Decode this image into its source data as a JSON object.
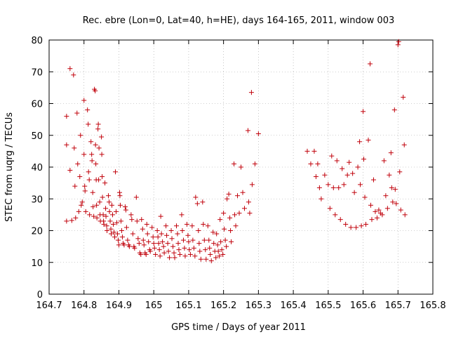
{
  "chart_data": {
    "type": "scatter",
    "title": "Rec. ebre (Lon=0, Lat=40, h=HE), days 164-165, 2011, window 003",
    "xlabel": "GPS time / Days of year 2011",
    "ylabel": "STEC from uqrg / TECUs",
    "xlim": [
      164.7,
      165.8
    ],
    "ylim": [
      0,
      80
    ],
    "xticks": [
      164.7,
      164.8,
      164.9,
      165.0,
      165.1,
      165.2,
      165.3,
      165.4,
      165.5,
      165.6,
      165.7,
      165.8
    ],
    "xtick_labels": [
      "164.7",
      "164.8",
      "164.9",
      "165",
      "165.1",
      "165.2",
      "165.3",
      "165.4",
      "165.5",
      "165.6",
      "165.7",
      "165.8"
    ],
    "yticks": [
      0,
      10,
      20,
      30,
      40,
      50,
      60,
      70,
      80
    ],
    "ytick_labels": [
      "0",
      "10",
      "20",
      "30",
      "40",
      "50",
      "60",
      "70",
      "80"
    ],
    "grid": true,
    "marker": "+",
    "color": "#c0000a",
    "points": [
      [
        164.75,
        56.0
      ],
      [
        164.75,
        47.0
      ],
      [
        164.75,
        23.0
      ],
      [
        164.76,
        71.0
      ],
      [
        164.76,
        39.0
      ],
      [
        164.765,
        23.2
      ],
      [
        164.77,
        69.0
      ],
      [
        164.772,
        46.0
      ],
      [
        164.774,
        34.0
      ],
      [
        164.776,
        24.0
      ],
      [
        164.78,
        57.0
      ],
      [
        164.782,
        41.0
      ],
      [
        164.785,
        26.0
      ],
      [
        164.788,
        37.0
      ],
      [
        164.79,
        50.0
      ],
      [
        164.792,
        28.0
      ],
      [
        164.795,
        29.0
      ],
      [
        164.8,
        61.0
      ],
      [
        164.8,
        44.0
      ],
      [
        164.802,
        34.0
      ],
      [
        164.803,
        32.5
      ],
      [
        164.805,
        26.0
      ],
      [
        164.81,
        58.0
      ],
      [
        164.812,
        53.5
      ],
      [
        164.813,
        38.5
      ],
      [
        164.815,
        36.0
      ],
      [
        164.816,
        25.0
      ],
      [
        164.82,
        48.0
      ],
      [
        164.822,
        44.0
      ],
      [
        164.823,
        42.0
      ],
      [
        164.825,
        32.0
      ],
      [
        164.826,
        27.5
      ],
      [
        164.828,
        24.5
      ],
      [
        164.83,
        64.5
      ],
      [
        164.832,
        64.0
      ],
      [
        164.833,
        47.0
      ],
      [
        164.834,
        41.0
      ],
      [
        164.835,
        36.0
      ],
      [
        164.836,
        28.0
      ],
      [
        164.837,
        24.0
      ],
      [
        164.84,
        52.0
      ],
      [
        164.841,
        53.5
      ],
      [
        164.842,
        36.0
      ],
      [
        164.843,
        46.0
      ],
      [
        164.845,
        29.0
      ],
      [
        164.846,
        25.0
      ],
      [
        164.847,
        23.0
      ],
      [
        164.85,
        49.5
      ],
      [
        164.851,
        44.0
      ],
      [
        164.852,
        37.0
      ],
      [
        164.853,
        30.5
      ],
      [
        164.855,
        25.0
      ],
      [
        164.856,
        23.0
      ],
      [
        164.857,
        22.0
      ],
      [
        164.86,
        35.0
      ],
      [
        164.862,
        27.0
      ],
      [
        164.863,
        24.5
      ],
      [
        164.865,
        21.5
      ],
      [
        164.866,
        20.0
      ],
      [
        164.87,
        31.0
      ],
      [
        164.872,
        29.0
      ],
      [
        164.873,
        26.0
      ],
      [
        164.875,
        23.0
      ],
      [
        164.877,
        20.5
      ],
      [
        164.878,
        19.0
      ],
      [
        164.88,
        28.0
      ],
      [
        164.882,
        25.0
      ],
      [
        164.884,
        22.0
      ],
      [
        164.886,
        19.5
      ],
      [
        164.888,
        18.0
      ],
      [
        164.89,
        38.5
      ],
      [
        164.892,
        26.0
      ],
      [
        164.894,
        22.5
      ],
      [
        164.896,
        19.0
      ],
      [
        164.898,
        17.0
      ],
      [
        164.9,
        15.5
      ],
      [
        164.902,
        32.0
      ],
      [
        164.903,
        31.0
      ],
      [
        164.904,
        28.0
      ],
      [
        164.906,
        23.0
      ],
      [
        164.908,
        20.0
      ],
      [
        164.91,
        18.0
      ],
      [
        164.912,
        16.0
      ],
      [
        164.915,
        15.5
      ],
      [
        164.918,
        27.5
      ],
      [
        164.92,
        26.5
      ],
      [
        164.922,
        21.0
      ],
      [
        164.925,
        17.0
      ],
      [
        164.928,
        15.5
      ],
      [
        164.93,
        15.0
      ],
      [
        164.935,
        25.0
      ],
      [
        164.937,
        23.5
      ],
      [
        164.94,
        19.0
      ],
      [
        164.943,
        15.0
      ],
      [
        164.945,
        14.5
      ],
      [
        164.95,
        30.5
      ],
      [
        164.952,
        23.0
      ],
      [
        164.955,
        17.5
      ],
      [
        164.958,
        16.0
      ],
      [
        164.96,
        13.0
      ],
      [
        164.963,
        12.5
      ],
      [
        164.965,
        23.5
      ],
      [
        164.968,
        20.5
      ],
      [
        164.97,
        17.0
      ],
      [
        164.972,
        15.5
      ],
      [
        164.975,
        13.0
      ],
      [
        164.978,
        12.5
      ],
      [
        164.98,
        22.0
      ],
      [
        164.982,
        19.0
      ],
      [
        164.985,
        16.5
      ],
      [
        164.988,
        14.0
      ],
      [
        164.99,
        13.5
      ],
      [
        164.995,
        21.0
      ],
      [
        164.998,
        18.0
      ],
      [
        165.0,
        16.0
      ],
      [
        165.002,
        14.5
      ],
      [
        165.005,
        12.5
      ],
      [
        165.01,
        20.0
      ],
      [
        165.012,
        18.0
      ],
      [
        165.014,
        16.0
      ],
      [
        165.016,
        14.0
      ],
      [
        165.018,
        12.0
      ],
      [
        165.02,
        24.5
      ],
      [
        165.022,
        19.0
      ],
      [
        165.025,
        16.5
      ],
      [
        165.028,
        15.0
      ],
      [
        165.03,
        13.0
      ],
      [
        165.035,
        21.5
      ],
      [
        165.037,
        18.5
      ],
      [
        165.04,
        16.0
      ],
      [
        165.042,
        13.5
      ],
      [
        165.045,
        11.5
      ],
      [
        165.05,
        20.0
      ],
      [
        165.052,
        17.5
      ],
      [
        165.055,
        15.0
      ],
      [
        165.058,
        13.0
      ],
      [
        165.06,
        11.5
      ],
      [
        165.065,
        21.5
      ],
      [
        165.068,
        19.0
      ],
      [
        165.07,
        16.0
      ],
      [
        165.072,
        14.0
      ],
      [
        165.075,
        12.5
      ],
      [
        165.08,
        25.0
      ],
      [
        165.082,
        20.0
      ],
      [
        165.085,
        17.0
      ],
      [
        165.088,
        14.5
      ],
      [
        165.09,
        12.0
      ],
      [
        165.095,
        22.0
      ],
      [
        165.098,
        18.5
      ],
      [
        165.1,
        16.5
      ],
      [
        165.102,
        14.0
      ],
      [
        165.105,
        12.5
      ],
      [
        165.11,
        21.5
      ],
      [
        165.112,
        17.0
      ],
      [
        165.115,
        14.5
      ],
      [
        165.118,
        12.0
      ],
      [
        165.12,
        30.5
      ],
      [
        165.125,
        28.5
      ],
      [
        165.128,
        20.0
      ],
      [
        165.13,
        16.0
      ],
      [
        165.132,
        13.5
      ],
      [
        165.135,
        11.0
      ],
      [
        165.14,
        29.0
      ],
      [
        165.142,
        22.0
      ],
      [
        165.145,
        17.0
      ],
      [
        165.148,
        14.0
      ],
      [
        165.15,
        11.0
      ],
      [
        165.155,
        21.5
      ],
      [
        165.158,
        17.0
      ],
      [
        165.16,
        14.5
      ],
      [
        165.162,
        12.5
      ],
      [
        165.165,
        10.5
      ],
      [
        165.17,
        19.5
      ],
      [
        165.172,
        16.0
      ],
      [
        165.175,
        13.5
      ],
      [
        165.178,
        11.5
      ],
      [
        165.18,
        19.0
      ],
      [
        165.183,
        15.5
      ],
      [
        165.185,
        13.5
      ],
      [
        165.188,
        12.0
      ],
      [
        165.19,
        23.5
      ],
      [
        165.192,
        16.5
      ],
      [
        165.195,
        14.0
      ],
      [
        165.198,
        12.5
      ],
      [
        165.2,
        25.5
      ],
      [
        165.202,
        20.5
      ],
      [
        165.205,
        17.0
      ],
      [
        165.208,
        15.0
      ],
      [
        165.21,
        30.0
      ],
      [
        165.215,
        31.5
      ],
      [
        165.218,
        24.0
      ],
      [
        165.22,
        20.0
      ],
      [
        165.222,
        16.5
      ],
      [
        165.23,
        41.0
      ],
      [
        165.232,
        25.0
      ],
      [
        165.235,
        21.5
      ],
      [
        165.24,
        31.0
      ],
      [
        165.245,
        25.5
      ],
      [
        165.25,
        40.0
      ],
      [
        165.255,
        32.0
      ],
      [
        165.26,
        27.0
      ],
      [
        165.27,
        51.5
      ],
      [
        165.272,
        29.0
      ],
      [
        165.275,
        25.5
      ],
      [
        165.28,
        63.5
      ],
      [
        165.282,
        34.5
      ],
      [
        165.29,
        41.0
      ],
      [
        165.3,
        50.5
      ],
      [
        165.44,
        45.0
      ],
      [
        165.45,
        41.0
      ],
      [
        165.46,
        45.0
      ],
      [
        165.465,
        37.0
      ],
      [
        165.47,
        41.0
      ],
      [
        165.475,
        33.5
      ],
      [
        165.48,
        30.0
      ],
      [
        165.49,
        37.5
      ],
      [
        165.5,
        34.5
      ],
      [
        165.505,
        27.0
      ],
      [
        165.51,
        43.5
      ],
      [
        165.515,
        33.5
      ],
      [
        165.52,
        25.0
      ],
      [
        165.525,
        42.0
      ],
      [
        165.53,
        33.5
      ],
      [
        165.535,
        23.5
      ],
      [
        165.54,
        39.5
      ],
      [
        165.545,
        34.5
      ],
      [
        165.55,
        22.0
      ],
      [
        165.555,
        37.5
      ],
      [
        165.56,
        41.5
      ],
      [
        165.565,
        21.0
      ],
      [
        165.57,
        38.0
      ],
      [
        165.575,
        32.0
      ],
      [
        165.58,
        21.0
      ],
      [
        165.585,
        40.0
      ],
      [
        165.59,
        48.0
      ],
      [
        165.592,
        34.5
      ],
      [
        165.595,
        21.5
      ],
      [
        165.6,
        57.5
      ],
      [
        165.602,
        42.5
      ],
      [
        165.605,
        30.5
      ],
      [
        165.608,
        22.0
      ],
      [
        165.615,
        48.5
      ],
      [
        165.62,
        72.5
      ],
      [
        165.622,
        28.0
      ],
      [
        165.625,
        23.5
      ],
      [
        165.63,
        36.0
      ],
      [
        165.635,
        26.0
      ],
      [
        165.64,
        24.0
      ],
      [
        165.645,
        26.5
      ],
      [
        165.65,
        25.5
      ],
      [
        165.655,
        25.0
      ],
      [
        165.66,
        42.0
      ],
      [
        165.665,
        31.0
      ],
      [
        165.67,
        27.0
      ],
      [
        165.675,
        37.5
      ],
      [
        165.68,
        44.5
      ],
      [
        165.682,
        33.5
      ],
      [
        165.685,
        29.0
      ],
      [
        165.69,
        58.0
      ],
      [
        165.692,
        33.0
      ],
      [
        165.695,
        28.5
      ],
      [
        165.7,
        78.5
      ],
      [
        165.702,
        79.5
      ],
      [
        165.705,
        38.5
      ],
      [
        165.708,
        26.5
      ],
      [
        165.715,
        62.0
      ],
      [
        165.718,
        47.0
      ],
      [
        165.72,
        25.0
      ]
    ]
  }
}
